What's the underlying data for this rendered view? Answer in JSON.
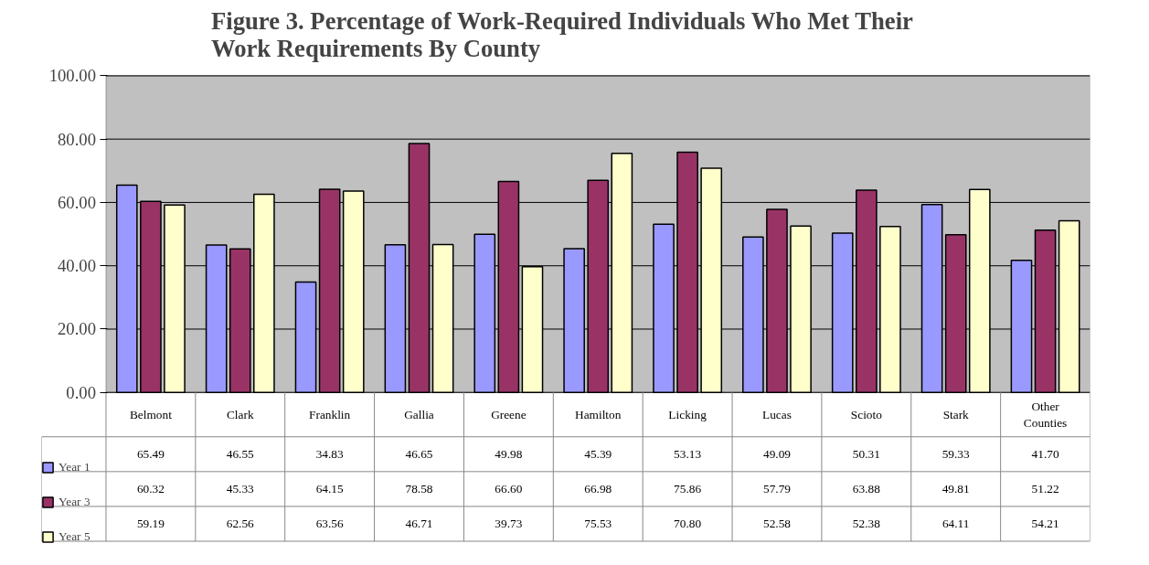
{
  "chart_data": {
    "type": "bar",
    "title": "Figure 3.  Percentage of Work-Required Individuals Who Met Their\nWork Requirements By County",
    "categories": [
      "Belmont",
      "Clark",
      "Franklin",
      "Gallia",
      "Greene",
      "Hamilton",
      "Licking",
      "Lucas",
      "Scioto",
      "Stark",
      "Other Counties"
    ],
    "series": [
      {
        "name": "Year 1",
        "color": "#9999ff",
        "values": [
          65.49,
          46.55,
          34.83,
          46.65,
          49.98,
          45.39,
          53.13,
          49.09,
          50.31,
          59.33,
          41.7
        ],
        "value_labels": [
          "65.49",
          "46.55",
          "34.83",
          "46.65",
          "49.98",
          "45.39",
          "53.13",
          "49.09",
          "50.31",
          "59.33",
          "41.70"
        ]
      },
      {
        "name": "Year 3",
        "color": "#993366",
        "values": [
          60.32,
          45.33,
          64.15,
          78.58,
          66.6,
          66.98,
          75.86,
          57.79,
          63.88,
          49.81,
          51.22
        ],
        "value_labels": [
          "60.32",
          "45.33",
          "64.15",
          "78.58",
          "66.60",
          "66.98",
          "75.86",
          "57.79",
          "63.88",
          "49.81",
          "51.22"
        ]
      },
      {
        "name": "Year 5",
        "color": "#ffffcc",
        "values": [
          59.19,
          62.56,
          63.56,
          46.71,
          39.73,
          75.53,
          70.8,
          52.58,
          52.38,
          64.11,
          54.21
        ],
        "value_labels": [
          "59.19",
          "62.56",
          "63.56",
          "46.71",
          "39.73",
          "75.53",
          "70.80",
          "52.58",
          "52.38",
          "64.11",
          "54.21"
        ]
      }
    ],
    "ylim": [
      0,
      100
    ],
    "yticks": [
      {
        "value": 0,
        "label": "0.00"
      },
      {
        "value": 20,
        "label": "20.00"
      },
      {
        "value": 40,
        "label": "40.00"
      },
      {
        "value": 60,
        "label": "60.00"
      },
      {
        "value": 80,
        "label": "80.00"
      },
      {
        "value": 100,
        "label": "100.00"
      }
    ],
    "grid": "y",
    "legend": "bottom left"
  }
}
